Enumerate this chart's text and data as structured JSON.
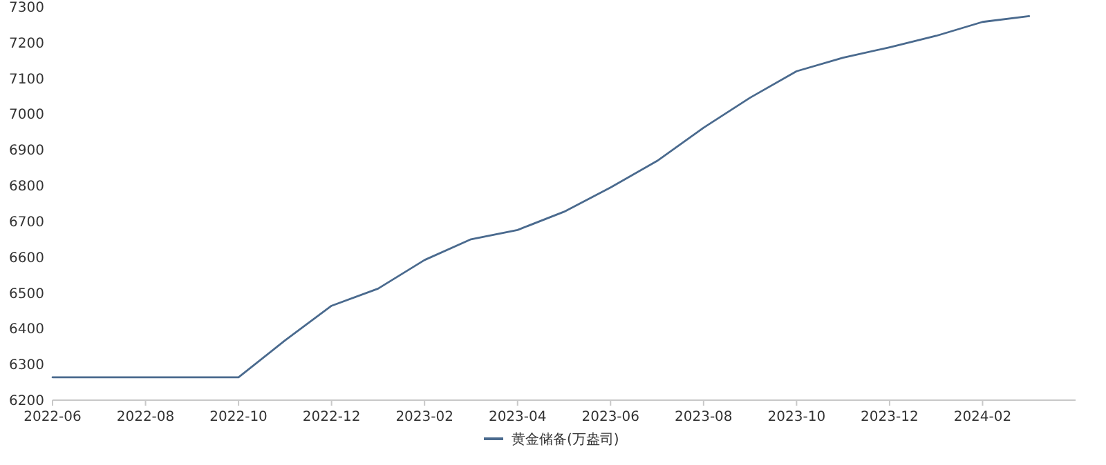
{
  "chart_data": {
    "type": "line",
    "x": [
      "2022-06",
      "2022-07",
      "2022-08",
      "2022-09",
      "2022-10",
      "2022-11",
      "2022-12",
      "2023-01",
      "2023-02",
      "2023-03",
      "2023-04",
      "2023-05",
      "2023-06",
      "2023-07",
      "2023-08",
      "2023-09",
      "2023-10",
      "2023-11",
      "2023-12",
      "2024-01",
      "2024-02",
      "2024-03"
    ],
    "series": [
      {
        "name": "黄金储备(万盎司)",
        "color": "#4a6a8e",
        "values": [
          6264,
          6264,
          6264,
          6264,
          6264,
          6367,
          6464,
          6512,
          6592,
          6650,
          6676,
          6727,
          6795,
          6869,
          6962,
          7046,
          7120,
          7158,
          7187,
          7219,
          7258,
          7274
        ]
      }
    ],
    "xlim": [
      "2022-06",
      "2024-04"
    ],
    "xticks": [
      "2022-06",
      "2022-08",
      "2022-10",
      "2022-12",
      "2023-02",
      "2023-04",
      "2023-06",
      "2023-08",
      "2023-10",
      "2023-12",
      "2024-02"
    ],
    "ylim": [
      6200,
      7300
    ],
    "yticks": [
      6200,
      6300,
      6400,
      6500,
      6600,
      6700,
      6800,
      6900,
      7000,
      7100,
      7200,
      7300
    ],
    "grid": false,
    "legend": "bottom",
    "marker": "none",
    "line_style": "solid"
  }
}
